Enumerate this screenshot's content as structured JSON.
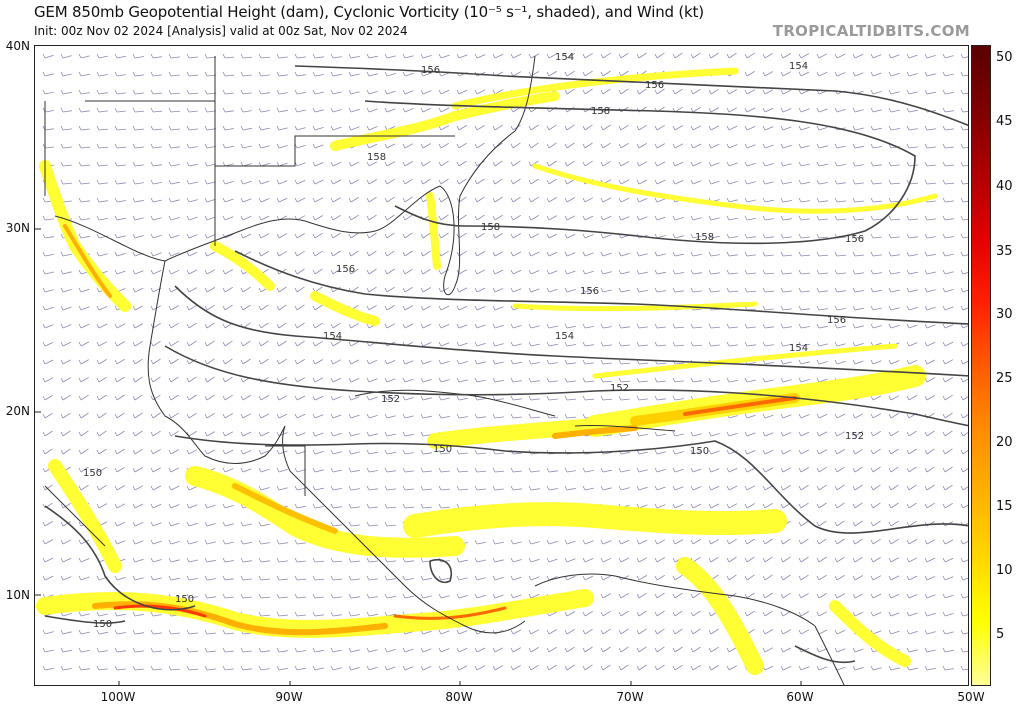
{
  "header": {
    "title": "GEM 850mb Geopotential Height (dam), Cyclonic Vorticity (10⁻⁵ s⁻¹, shaded), and Wind (kt)",
    "subtitle": "Init: 00z Nov 02 2024   [Analysis]   valid at 00z Sat, Nov 02 2024",
    "brand": "TROPICALTIDBITS.COM"
  },
  "map": {
    "lat_labels": [
      "40N",
      "30N",
      "20N",
      "10N"
    ],
    "lon_labels": [
      "100W",
      "90W",
      "80W",
      "70W",
      "60W",
      "50W"
    ],
    "height_labels": [
      "154",
      "156",
      "154",
      "156",
      "158",
      "158",
      "156",
      "158",
      "158",
      "156",
      "156",
      "154",
      "156",
      "154",
      "152",
      "152",
      "154",
      "150",
      "150",
      "152",
      "150",
      "150",
      "150"
    ]
  },
  "colorbar": {
    "ticks": [
      "50",
      "45",
      "40",
      "35",
      "30",
      "25",
      "20",
      "15",
      "10",
      "5"
    ],
    "colors": [
      "#ffff99",
      "#ffff00",
      "#ffd700",
      "#ffb000",
      "#ff8c00",
      "#ff5a00",
      "#ff2000",
      "#e00000",
      "#b00000",
      "#800000",
      "#5a0000"
    ]
  }
}
